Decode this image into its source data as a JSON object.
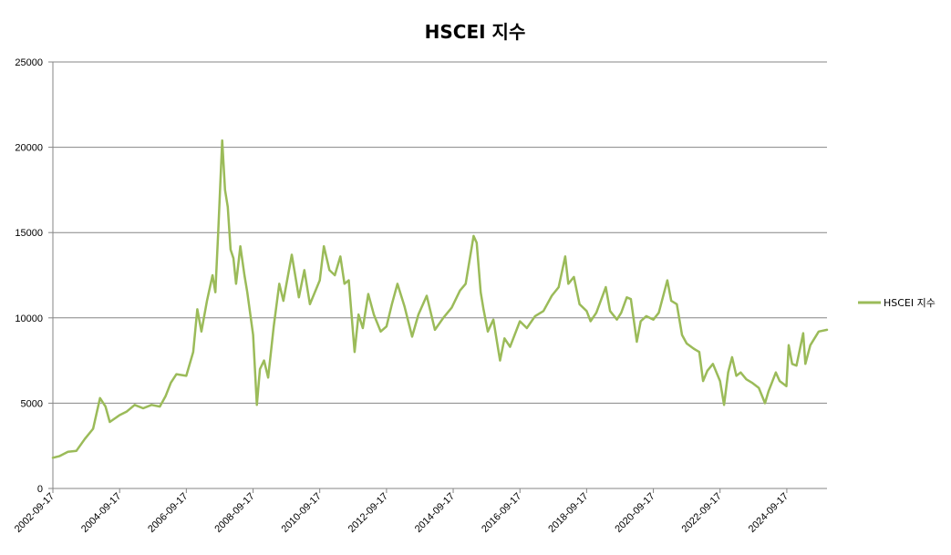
{
  "chart_data": {
    "type": "line",
    "title": "HSCEI 지수",
    "xlabel": "",
    "ylabel": "",
    "ylim": [
      0,
      25000
    ],
    "yticks": [
      0,
      5000,
      10000,
      15000,
      20000,
      25000
    ],
    "xlim": [
      "2002-09-17",
      "2025-12-01"
    ],
    "xtick_labels": [
      "2002-09-17",
      "2004-09-17",
      "2006-09-17",
      "2008-09-17",
      "2010-09-17",
      "2012-09-17",
      "2014-09-17",
      "2016-09-17",
      "2018-09-17",
      "2020-09-17",
      "2022-09-17",
      "2024-09-17"
    ],
    "grid": "horizontal",
    "legend_position": "right",
    "series": [
      {
        "name": "HSCEI 지수",
        "color": "#9bbb59",
        "points": [
          [
            "2002-09-17",
            1800
          ],
          [
            "2002-12-01",
            1900
          ],
          [
            "2003-03-01",
            2150
          ],
          [
            "2003-06-01",
            2200
          ],
          [
            "2003-09-01",
            2900
          ],
          [
            "2003-12-01",
            3500
          ],
          [
            "2004-02-15",
            5300
          ],
          [
            "2004-04-15",
            4800
          ],
          [
            "2004-06-01",
            3900
          ],
          [
            "2004-09-17",
            4300
          ],
          [
            "2004-12-01",
            4500
          ],
          [
            "2005-03-01",
            4900
          ],
          [
            "2005-06-01",
            4700
          ],
          [
            "2005-09-01",
            4900
          ],
          [
            "2005-12-01",
            4800
          ],
          [
            "2006-02-01",
            5400
          ],
          [
            "2006-04-01",
            6200
          ],
          [
            "2006-06-01",
            6700
          ],
          [
            "2006-09-17",
            6600
          ],
          [
            "2006-12-01",
            8000
          ],
          [
            "2007-01-15",
            10500
          ],
          [
            "2007-03-01",
            9200
          ],
          [
            "2007-05-01",
            11000
          ],
          [
            "2007-07-01",
            12500
          ],
          [
            "2007-08-01",
            11500
          ],
          [
            "2007-09-01",
            15000
          ],
          [
            "2007-10-15",
            20400
          ],
          [
            "2007-11-15",
            17500
          ],
          [
            "2007-12-15",
            16500
          ],
          [
            "2008-01-15",
            14000
          ],
          [
            "2008-02-15",
            13500
          ],
          [
            "2008-03-15",
            12000
          ],
          [
            "2008-05-01",
            14200
          ],
          [
            "2008-06-15",
            12500
          ],
          [
            "2008-07-15",
            11500
          ],
          [
            "2008-09-17",
            9000
          ],
          [
            "2008-10-28",
            4900
          ],
          [
            "2008-12-01",
            7000
          ],
          [
            "2009-01-15",
            7500
          ],
          [
            "2009-03-01",
            6500
          ],
          [
            "2009-05-01",
            9500
          ],
          [
            "2009-07-01",
            12000
          ],
          [
            "2009-08-15",
            11000
          ],
          [
            "2009-11-15",
            13700
          ],
          [
            "2010-02-01",
            11200
          ],
          [
            "2010-04-01",
            12800
          ],
          [
            "2010-06-01",
            10800
          ],
          [
            "2010-09-17",
            12200
          ],
          [
            "2010-11-01",
            14200
          ],
          [
            "2011-01-01",
            12800
          ],
          [
            "2011-03-01",
            12500
          ],
          [
            "2011-05-01",
            13600
          ],
          [
            "2011-06-15",
            12000
          ],
          [
            "2011-08-01",
            12200
          ],
          [
            "2011-10-04",
            8000
          ],
          [
            "2011-11-15",
            10200
          ],
          [
            "2012-01-01",
            9400
          ],
          [
            "2012-03-01",
            11400
          ],
          [
            "2012-05-01",
            10200
          ],
          [
            "2012-07-15",
            9200
          ],
          [
            "2012-09-17",
            9500
          ],
          [
            "2012-11-15",
            10800
          ],
          [
            "2013-01-15",
            12000
          ],
          [
            "2013-04-01",
            10700
          ],
          [
            "2013-06-25",
            8900
          ],
          [
            "2013-09-01",
            10200
          ],
          [
            "2013-12-01",
            11300
          ],
          [
            "2014-03-01",
            9300
          ],
          [
            "2014-06-01",
            10000
          ],
          [
            "2014-09-01",
            10600
          ],
          [
            "2014-12-01",
            11600
          ],
          [
            "2015-02-01",
            12000
          ],
          [
            "2015-04-28",
            14800
          ],
          [
            "2015-06-01",
            14400
          ],
          [
            "2015-07-15",
            11500
          ],
          [
            "2015-08-15",
            10500
          ],
          [
            "2015-10-01",
            9200
          ],
          [
            "2015-12-01",
            9900
          ],
          [
            "2016-02-12",
            7500
          ],
          [
            "2016-04-01",
            8800
          ],
          [
            "2016-06-01",
            8300
          ],
          [
            "2016-09-17",
            9800
          ],
          [
            "2016-12-01",
            9400
          ],
          [
            "2017-03-01",
            10100
          ],
          [
            "2017-06-01",
            10400
          ],
          [
            "2017-09-01",
            11300
          ],
          [
            "2017-11-15",
            11800
          ],
          [
            "2018-01-26",
            13600
          ],
          [
            "2018-03-01",
            12000
          ],
          [
            "2018-05-01",
            12400
          ],
          [
            "2018-07-01",
            10800
          ],
          [
            "2018-09-17",
            10400
          ],
          [
            "2018-10-30",
            9800
          ],
          [
            "2019-01-01",
            10300
          ],
          [
            "2019-04-15",
            11800
          ],
          [
            "2019-06-01",
            10400
          ],
          [
            "2019-08-15",
            9900
          ],
          [
            "2019-10-01",
            10300
          ],
          [
            "2019-12-01",
            11200
          ],
          [
            "2020-01-15",
            11100
          ],
          [
            "2020-03-19",
            8600
          ],
          [
            "2020-05-01",
            9800
          ],
          [
            "2020-07-01",
            10100
          ],
          [
            "2020-09-17",
            9900
          ],
          [
            "2020-11-15",
            10300
          ],
          [
            "2021-02-17",
            12200
          ],
          [
            "2021-04-01",
            11000
          ],
          [
            "2021-06-01",
            10800
          ],
          [
            "2021-07-28",
            9000
          ],
          [
            "2021-09-17",
            8500
          ],
          [
            "2021-12-01",
            8200
          ],
          [
            "2022-02-01",
            8000
          ],
          [
            "2022-03-15",
            6300
          ],
          [
            "2022-05-01",
            6900
          ],
          [
            "2022-07-01",
            7300
          ],
          [
            "2022-09-17",
            6300
          ],
          [
            "2022-10-31",
            4900
          ],
          [
            "2022-12-15",
            6800
          ],
          [
            "2023-01-27",
            7700
          ],
          [
            "2023-03-15",
            6600
          ],
          [
            "2023-05-01",
            6800
          ],
          [
            "2023-07-01",
            6400
          ],
          [
            "2023-09-01",
            6200
          ],
          [
            "2023-11-15",
            5900
          ],
          [
            "2024-01-22",
            5000
          ],
          [
            "2024-03-01",
            5700
          ],
          [
            "2024-05-20",
            6800
          ],
          [
            "2024-07-01",
            6300
          ],
          [
            "2024-09-13",
            6000
          ],
          [
            "2024-10-08",
            8400
          ],
          [
            "2024-11-15",
            7300
          ],
          [
            "2025-01-01",
            7200
          ],
          [
            "2025-03-15",
            9100
          ],
          [
            "2025-04-08",
            7300
          ],
          [
            "2025-06-01",
            8400
          ],
          [
            "2025-09-01",
            9200
          ],
          [
            "2025-12-01",
            9300
          ]
        ]
      }
    ]
  }
}
